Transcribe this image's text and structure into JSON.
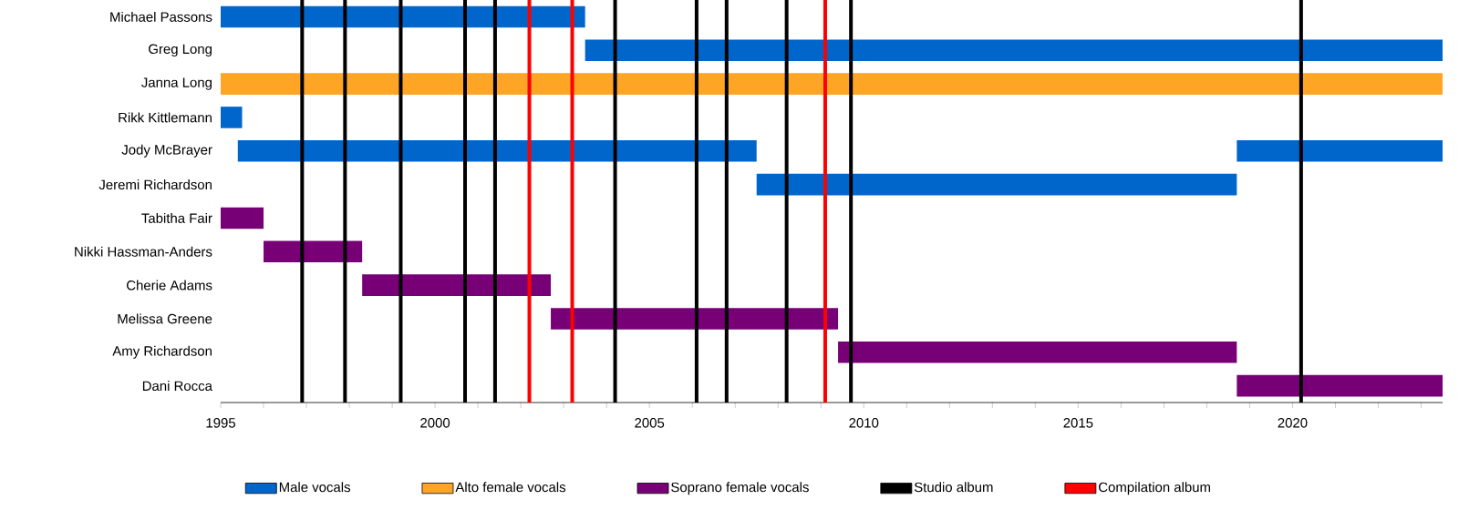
{
  "chart_data": {
    "type": "bar",
    "orientation": "horizontal",
    "categories": [
      "Michael Passons",
      "Greg Long",
      "Janna Long",
      "Rikk Kittlemann",
      "Jody McBrayer",
      "Jeremi Richardson",
      "Tabitha Fair",
      "Nikki Hassman-Anders",
      "Cherie Adams",
      "Melissa Greene",
      "Amy Richardson",
      "Dani Rocca"
    ],
    "series": [
      {
        "name": "Male vocals",
        "color": "#0066cc",
        "base": [
          1995,
          2003.5,
          null,
          1995,
          1995.4,
          2007.5,
          null,
          null,
          null,
          null,
          null,
          null
        ],
        "values": [
          8.5,
          20,
          null,
          0.5,
          12.1,
          11.2,
          null,
          null,
          null,
          null,
          null,
          null
        ]
      },
      {
        "color": "#0066cc",
        "base": [
          null,
          null,
          null,
          null,
          2018.7,
          null,
          null,
          null,
          null,
          null,
          null,
          null
        ],
        "values": [
          null,
          null,
          null,
          null,
          4.8,
          null,
          null,
          null,
          null,
          null,
          null,
          null
        ]
      },
      {
        "name": "Alto female vocals",
        "color": "#ffa526",
        "base": [
          null,
          null,
          1995,
          null,
          null,
          null,
          null,
          null,
          null,
          null,
          null,
          null
        ],
        "values": [
          null,
          null,
          28.5,
          null,
          null,
          null,
          null,
          null,
          null,
          null,
          null,
          null
        ]
      },
      {
        "name": "Soprano female vocals",
        "color": "#770077",
        "base": [
          null,
          null,
          null,
          null,
          null,
          null,
          1995,
          1996,
          1998.3,
          2002.7,
          2009.4,
          2018.7
        ],
        "values": [
          null,
          null,
          null,
          null,
          null,
          null,
          1.0,
          2.3,
          4.4,
          6.7,
          9.3,
          4.8
        ]
      }
    ],
    "xlim": [
      1995,
      2023.5
    ],
    "xticks": [
      1995,
      {
        "value": 1996,
        "label": null
      },
      {
        "value": 1997,
        "label": null
      },
      {
        "value": 1998,
        "label": null
      },
      {
        "value": 1999,
        "label": null
      },
      2000,
      {
        "value": 2001,
        "label": null
      },
      {
        "value": 2002,
        "label": null
      },
      {
        "value": 2003,
        "label": null
      },
      {
        "value": 2004,
        "label": null
      },
      2005,
      {
        "value": 2006,
        "label": null
      },
      {
        "value": 2007,
        "label": null
      },
      {
        "value": 2008,
        "label": null
      },
      {
        "value": 2009,
        "label": null
      },
      2010,
      {
        "value": 2011,
        "label": null
      },
      {
        "value": 2012,
        "label": null
      },
      {
        "value": 2013,
        "label": null
      },
      {
        "value": 2014,
        "label": null
      },
      2015,
      {
        "value": 2016,
        "label": null
      },
      {
        "value": 2017,
        "label": null
      },
      {
        "value": 2018,
        "label": null
      },
      {
        "value": 2019,
        "label": null
      },
      2020,
      {
        "value": 2021,
        "label": null
      },
      {
        "value": 2022,
        "label": null
      },
      {
        "value": 2023,
        "label": null
      }
    ],
    "ref_lines": [
      {
        "axis": "x",
        "value": 1996.9,
        "color": "#000000",
        "label": "Studio album"
      },
      {
        "axis": "x",
        "value": 1997.9,
        "color": "#000000"
      },
      {
        "axis": "x",
        "value": 1999.2,
        "color": "#000000"
      },
      {
        "axis": "x",
        "value": 2000.7,
        "color": "#000000"
      },
      {
        "axis": "x",
        "value": 2001.4,
        "color": "#000000"
      },
      {
        "axis": "x",
        "value": 2004.2,
        "color": "#000000"
      },
      {
        "axis": "x",
        "value": 2006.1,
        "color": "#000000"
      },
      {
        "axis": "x",
        "value": 2006.8,
        "color": "#000000"
      },
      {
        "axis": "x",
        "value": 2008.2,
        "color": "#000000"
      },
      {
        "axis": "x",
        "value": 2009.7,
        "color": "#000000"
      },
      {
        "axis": "x",
        "value": 2020.2,
        "color": "#000000"
      },
      {
        "axis": "x",
        "value": 2002.2,
        "color": "#ff0000",
        "label": "Compilation album"
      },
      {
        "axis": "x",
        "value": 2003.2,
        "color": "#ff0000"
      },
      {
        "axis": "x",
        "value": 2009.1,
        "color": "#ff0000"
      }
    ],
    "legend": "bottom"
  }
}
